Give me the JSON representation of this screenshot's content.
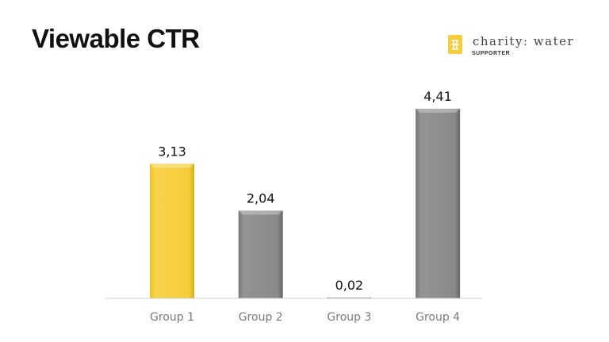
{
  "header": {
    "title": "Viewable CTR"
  },
  "logo": {
    "name": "charity: water",
    "subtitle": "SUPPORTER"
  },
  "chart_data": {
    "type": "bar",
    "title": "Viewable CTR",
    "categories": [
      "Group 1",
      "Group 2",
      "Group 3",
      "Group 4"
    ],
    "values": [
      3.13,
      2.04,
      0.02,
      4.41
    ],
    "data_labels": [
      "3,13",
      "2,04",
      "0,02",
      "4,41"
    ],
    "colors": [
      "#f6cd3b",
      "#8a8a8a",
      "#8a8a8a",
      "#8a8a8a"
    ],
    "xlabel": "",
    "ylabel": "",
    "ylim": [
      0,
      4.41
    ],
    "grid": false,
    "legend": "none"
  }
}
